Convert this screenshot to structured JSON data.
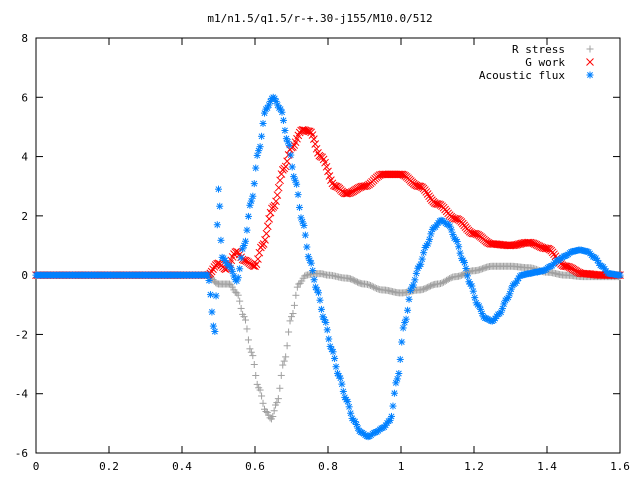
{
  "chart_data": {
    "type": "scatter",
    "title": "m1/n1.5/q1.5/r-+.30-j155/M10.0/512",
    "xlabel": "",
    "ylabel": "",
    "xlim": [
      0,
      1.6
    ],
    "ylim": [
      -6,
      8
    ],
    "x_ticks": [
      "0",
      "0.2",
      "0.4",
      "0.6",
      "0.8",
      "1",
      "1.2",
      "1.4",
      "1.6"
    ],
    "y_ticks": [
      "-6",
      "-4",
      "-2",
      "0",
      "2",
      "4",
      "6",
      "8"
    ],
    "grid": false,
    "legend_position": "top-right",
    "series": [
      {
        "name": "R stress",
        "marker": "plus-icon",
        "color": "#a0a0a0",
        "x": [
          0.0,
          0.1,
          0.2,
          0.3,
          0.4,
          0.47,
          0.5,
          0.53,
          0.55,
          0.57,
          0.59,
          0.61,
          0.63,
          0.645,
          0.66,
          0.68,
          0.7,
          0.72,
          0.74,
          0.76,
          0.78,
          0.8,
          0.85,
          0.9,
          0.95,
          1.0,
          1.05,
          1.1,
          1.15,
          1.2,
          1.25,
          1.3,
          1.35,
          1.4,
          1.45,
          1.5,
          1.55,
          1.6
        ],
        "y": [
          0.0,
          0.0,
          0.0,
          0.0,
          0.0,
          0.0,
          -0.3,
          -0.3,
          -0.6,
          -1.4,
          -2.6,
          -3.8,
          -4.6,
          -4.85,
          -4.3,
          -2.9,
          -1.4,
          -0.3,
          0.0,
          0.05,
          0.05,
          0.0,
          -0.1,
          -0.3,
          -0.5,
          -0.6,
          -0.5,
          -0.3,
          -0.05,
          0.15,
          0.3,
          0.3,
          0.25,
          0.1,
          0.0,
          -0.05,
          -0.05,
          -0.05
        ]
      },
      {
        "name": "G work",
        "marker": "cross-icon",
        "color": "#ff0000",
        "x": [
          0.0,
          0.1,
          0.2,
          0.3,
          0.4,
          0.47,
          0.5,
          0.52,
          0.55,
          0.57,
          0.6,
          0.62,
          0.65,
          0.68,
          0.7,
          0.73,
          0.75,
          0.78,
          0.82,
          0.85,
          0.9,
          0.95,
          1.0,
          1.05,
          1.1,
          1.15,
          1.2,
          1.25,
          1.3,
          1.35,
          1.4,
          1.45,
          1.5,
          1.55,
          1.6
        ],
        "y": [
          0.0,
          0.0,
          0.0,
          0.0,
          0.0,
          0.0,
          0.4,
          0.2,
          0.8,
          0.5,
          0.3,
          1.0,
          2.3,
          3.6,
          4.3,
          4.9,
          4.85,
          4.0,
          3.0,
          2.75,
          3.0,
          3.4,
          3.4,
          3.0,
          2.4,
          1.9,
          1.4,
          1.05,
          1.0,
          1.1,
          0.9,
          0.3,
          0.05,
          0.0,
          0.0
        ]
      },
      {
        "name": "Acoustic flux",
        "marker": "asterisk-icon",
        "color": "#0080ff",
        "x": [
          0.0,
          0.1,
          0.2,
          0.3,
          0.4,
          0.47,
          0.49,
          0.5,
          0.51,
          0.53,
          0.55,
          0.57,
          0.59,
          0.61,
          0.63,
          0.65,
          0.67,
          0.69,
          0.71,
          0.73,
          0.75,
          0.77,
          0.79,
          0.81,
          0.83,
          0.85,
          0.87,
          0.89,
          0.91,
          0.93,
          0.95,
          0.97,
          0.99,
          1.01,
          1.03,
          1.05,
          1.07,
          1.09,
          1.11,
          1.13,
          1.15,
          1.17,
          1.19,
          1.21,
          1.23,
          1.25,
          1.27,
          1.29,
          1.31,
          1.33,
          1.35,
          1.37,
          1.39,
          1.41,
          1.43,
          1.45,
          1.47,
          1.49,
          1.51,
          1.53,
          1.55,
          1.57,
          1.6
        ],
        "y": [
          0.0,
          0.0,
          0.0,
          0.0,
          0.0,
          0.0,
          -1.9,
          2.9,
          0.6,
          0.3,
          -0.2,
          1.0,
          2.5,
          4.2,
          5.6,
          6.0,
          5.6,
          4.5,
          3.2,
          1.8,
          0.5,
          -0.5,
          -1.5,
          -2.5,
          -3.4,
          -4.2,
          -4.9,
          -5.3,
          -5.45,
          -5.3,
          -5.15,
          -4.9,
          -3.5,
          -1.6,
          -0.4,
          0.3,
          1.0,
          1.6,
          1.85,
          1.7,
          1.2,
          0.5,
          -0.3,
          -1.0,
          -1.45,
          -1.55,
          -1.3,
          -0.8,
          -0.3,
          0.0,
          0.05,
          0.1,
          0.15,
          0.3,
          0.5,
          0.65,
          0.8,
          0.85,
          0.8,
          0.6,
          0.3,
          0.05,
          0.0
        ]
      }
    ]
  }
}
